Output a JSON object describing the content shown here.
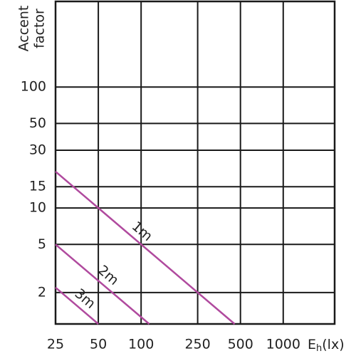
{
  "chart_data": {
    "type": "line",
    "y_label": [
      "Accent",
      "factor"
    ],
    "x_label": {
      "main": "E",
      "sub": "h",
      "unit": "(lx)"
    },
    "xscale": "log",
    "yscale": "log",
    "xlim": [
      25,
      2300
    ],
    "ylim": [
      1.1,
      510
    ],
    "xticks": [
      25,
      50,
      100,
      250,
      500,
      1000
    ],
    "yticks": [
      2,
      5,
      10,
      15,
      30,
      50,
      100
    ],
    "grid": true,
    "series": [
      {
        "name": "1m",
        "color": "#b04a9e",
        "x": [
          25,
          455
        ],
        "values": [
          20,
          1.1
        ]
      },
      {
        "name": "2m",
        "color": "#b04a9e",
        "x": [
          25,
          114
        ],
        "values": [
          5,
          1.1
        ]
      },
      {
        "name": "3m",
        "color": "#b04a9e",
        "x": [
          25,
          50
        ],
        "values": [
          2.2,
          1.1
        ]
      }
    ]
  }
}
